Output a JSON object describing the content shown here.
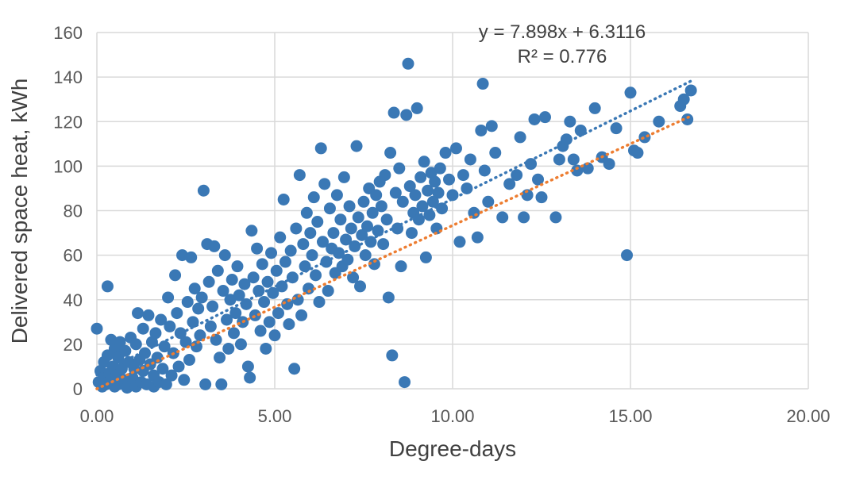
{
  "chart_data": {
    "type": "scatter",
    "title": "",
    "xlabel": "Degree-days",
    "ylabel": "Delivered space heat, kWh",
    "xlim": [
      0,
      20
    ],
    "ylim": [
      0,
      160
    ],
    "x_ticks": [
      "0.00",
      "5.00",
      "10.00",
      "15.00",
      "20.00"
    ],
    "y_ticks": [
      "0",
      "20",
      "40",
      "60",
      "80",
      "100",
      "120",
      "140",
      "160"
    ],
    "grid": true,
    "colors": {
      "points": "#3a78b5",
      "trend_linear": "#3a78b5",
      "trend_secondary": "#ed7d31",
      "grid": "#d9d9d9"
    },
    "annotations": {
      "equation": "y = 7.898x + 6.3116",
      "r_squared": "R² = 0.776"
    },
    "trendlines": [
      {
        "x": [
          0,
          16.7
        ],
        "y": [
          6.3116,
          138.2
        ],
        "color": "#3a78b5"
      },
      {
        "x": [
          0,
          16.7
        ],
        "y": [
          0,
          122.5
        ],
        "color": "#ed7d31"
      }
    ],
    "series": [
      {
        "points": [
          [
            0.0,
            27
          ],
          [
            0.05,
            3
          ],
          [
            0.1,
            8
          ],
          [
            0.15,
            1
          ],
          [
            0.2,
            5
          ],
          [
            0.2,
            12
          ],
          [
            0.25,
            2
          ],
          [
            0.3,
            46
          ],
          [
            0.3,
            15
          ],
          [
            0.35,
            7
          ],
          [
            0.4,
            22
          ],
          [
            0.4,
            3
          ],
          [
            0.45,
            10
          ],
          [
            0.5,
            18
          ],
          [
            0.5,
            1
          ],
          [
            0.55,
            6
          ],
          [
            0.6,
            14
          ],
          [
            0.6,
            2
          ],
          [
            0.65,
            21
          ],
          [
            0.7,
            9
          ],
          [
            0.75,
            4
          ],
          [
            0.8,
            17
          ],
          [
            0.85,
            0.5
          ],
          [
            0.9,
            12
          ],
          [
            0.95,
            23
          ],
          [
            1.0,
            5
          ],
          [
            1.05,
            9
          ],
          [
            1.1,
            20
          ],
          [
            1.1,
            1
          ],
          [
            1.15,
            34
          ],
          [
            1.2,
            13
          ],
          [
            1.25,
            3
          ],
          [
            1.3,
            27
          ],
          [
            1.3,
            8
          ],
          [
            1.35,
            16
          ],
          [
            1.4,
            2
          ],
          [
            1.45,
            33
          ],
          [
            1.5,
            11
          ],
          [
            1.55,
            21
          ],
          [
            1.6,
            1
          ],
          [
            1.6,
            6
          ],
          [
            1.65,
            25
          ],
          [
            1.7,
            14
          ],
          [
            1.75,
            3
          ],
          [
            1.8,
            31
          ],
          [
            1.85,
            9
          ],
          [
            1.9,
            19
          ],
          [
            1.95,
            2
          ],
          [
            2.0,
            41
          ],
          [
            2.05,
            28
          ],
          [
            2.1,
            6
          ],
          [
            2.15,
            16
          ],
          [
            2.2,
            51
          ],
          [
            2.25,
            34
          ],
          [
            2.3,
            10
          ],
          [
            2.35,
            25
          ],
          [
            2.4,
            60
          ],
          [
            2.45,
            4
          ],
          [
            2.5,
            21
          ],
          [
            2.55,
            39
          ],
          [
            2.6,
            13
          ],
          [
            2.65,
            59
          ],
          [
            2.7,
            30
          ],
          [
            2.75,
            45
          ],
          [
            2.8,
            19
          ],
          [
            2.85,
            36
          ],
          [
            2.9,
            24
          ],
          [
            2.95,
            41
          ],
          [
            3.0,
            89
          ],
          [
            3.05,
            2
          ],
          [
            3.1,
            65
          ],
          [
            3.15,
            48
          ],
          [
            3.2,
            28
          ],
          [
            3.25,
            37
          ],
          [
            3.3,
            64
          ],
          [
            3.35,
            22
          ],
          [
            3.4,
            53
          ],
          [
            3.45,
            14
          ],
          [
            3.5,
            2
          ],
          [
            3.55,
            44
          ],
          [
            3.6,
            60
          ],
          [
            3.65,
            31
          ],
          [
            3.7,
            18
          ],
          [
            3.75,
            40
          ],
          [
            3.8,
            49
          ],
          [
            3.85,
            25
          ],
          [
            3.9,
            34
          ],
          [
            3.95,
            55
          ],
          [
            4.0,
            42
          ],
          [
            4.05,
            20
          ],
          [
            4.1,
            30
          ],
          [
            4.15,
            47
          ],
          [
            4.2,
            38
          ],
          [
            4.25,
            10
          ],
          [
            4.3,
            5
          ],
          [
            4.35,
            71
          ],
          [
            4.4,
            50
          ],
          [
            4.45,
            33
          ],
          [
            4.5,
            63
          ],
          [
            4.55,
            44
          ],
          [
            4.6,
            26
          ],
          [
            4.65,
            56
          ],
          [
            4.7,
            39
          ],
          [
            4.75,
            18
          ],
          [
            4.8,
            48
          ],
          [
            4.85,
            30
          ],
          [
            4.9,
            61
          ],
          [
            4.95,
            43
          ],
          [
            5.0,
            24
          ],
          [
            5.05,
            53
          ],
          [
            5.1,
            34
          ],
          [
            5.15,
            68
          ],
          [
            5.2,
            46
          ],
          [
            5.25,
            85
          ],
          [
            5.3,
            57
          ],
          [
            5.35,
            38
          ],
          [
            5.4,
            29
          ],
          [
            5.45,
            62
          ],
          [
            5.5,
            50
          ],
          [
            5.55,
            9
          ],
          [
            5.6,
            72
          ],
          [
            5.65,
            40
          ],
          [
            5.7,
            96
          ],
          [
            5.75,
            33
          ],
          [
            5.8,
            65
          ],
          [
            5.85,
            55
          ],
          [
            5.9,
            79
          ],
          [
            5.95,
            45
          ],
          [
            6.0,
            70
          ],
          [
            6.05,
            60
          ],
          [
            6.1,
            86
          ],
          [
            6.15,
            51
          ],
          [
            6.2,
            75
          ],
          [
            6.25,
            39
          ],
          [
            6.3,
            108
          ],
          [
            6.35,
            66
          ],
          [
            6.4,
            92
          ],
          [
            6.45,
            57
          ],
          [
            6.5,
            44
          ],
          [
            6.55,
            81
          ],
          [
            6.6,
            63
          ],
          [
            6.65,
            70
          ],
          [
            6.7,
            52
          ],
          [
            6.75,
            87
          ],
          [
            6.8,
            61
          ],
          [
            6.85,
            76
          ],
          [
            6.9,
            55
          ],
          [
            6.95,
            95
          ],
          [
            7.0,
            67
          ],
          [
            7.05,
            58
          ],
          [
            7.1,
            82
          ],
          [
            7.15,
            72
          ],
          [
            7.2,
            50
          ],
          [
            7.25,
            64
          ],
          [
            7.3,
            109
          ],
          [
            7.35,
            77
          ],
          [
            7.4,
            46
          ],
          [
            7.45,
            69
          ],
          [
            7.5,
            84
          ],
          [
            7.55,
            60
          ],
          [
            7.6,
            73
          ],
          [
            7.65,
            90
          ],
          [
            7.7,
            66
          ],
          [
            7.75,
            79
          ],
          [
            7.8,
            56
          ],
          [
            7.85,
            87
          ],
          [
            7.9,
            71
          ],
          [
            7.95,
            93
          ],
          [
            8.0,
            82
          ],
          [
            8.05,
            65
          ],
          [
            8.1,
            96
          ],
          [
            8.15,
            76
          ],
          [
            8.2,
            41
          ],
          [
            8.25,
            106
          ],
          [
            8.3,
            15
          ],
          [
            8.35,
            124
          ],
          [
            8.4,
            88
          ],
          [
            8.45,
            72
          ],
          [
            8.5,
            99
          ],
          [
            8.55,
            55
          ],
          [
            8.6,
            84
          ],
          [
            8.65,
            3
          ],
          [
            8.7,
            123
          ],
          [
            8.75,
            146
          ],
          [
            8.8,
            91
          ],
          [
            8.85,
            70
          ],
          [
            8.9,
            79
          ],
          [
            8.95,
            87
          ],
          [
            9.0,
            126
          ],
          [
            9.05,
            76
          ],
          [
            9.1,
            95
          ],
          [
            9.15,
            82
          ],
          [
            9.2,
            102
          ],
          [
            9.25,
            59
          ],
          [
            9.3,
            89
          ],
          [
            9.35,
            78
          ],
          [
            9.4,
            97
          ],
          [
            9.45,
            84
          ],
          [
            9.5,
            93
          ],
          [
            9.55,
            72
          ],
          [
            9.6,
            88
          ],
          [
            9.65,
            99
          ],
          [
            9.7,
            81
          ],
          [
            9.8,
            106
          ],
          [
            9.9,
            94
          ],
          [
            10.0,
            87
          ],
          [
            10.1,
            108
          ],
          [
            10.2,
            66
          ],
          [
            10.3,
            96
          ],
          [
            10.4,
            90
          ],
          [
            10.5,
            103
          ],
          [
            10.6,
            79
          ],
          [
            10.7,
            68
          ],
          [
            10.8,
            116
          ],
          [
            10.85,
            137
          ],
          [
            10.9,
            98
          ],
          [
            11.0,
            84
          ],
          [
            11.1,
            118
          ],
          [
            11.2,
            106
          ],
          [
            11.4,
            77
          ],
          [
            11.6,
            92
          ],
          [
            11.8,
            96
          ],
          [
            11.9,
            113
          ],
          [
            12.0,
            77
          ],
          [
            12.1,
            87
          ],
          [
            12.2,
            101
          ],
          [
            12.3,
            121
          ],
          [
            12.4,
            94
          ],
          [
            12.5,
            86
          ],
          [
            12.6,
            122
          ],
          [
            12.9,
            77
          ],
          [
            13.0,
            103
          ],
          [
            13.1,
            109
          ],
          [
            13.2,
            112
          ],
          [
            13.3,
            120
          ],
          [
            13.4,
            103
          ],
          [
            13.5,
            98
          ],
          [
            13.6,
            116
          ],
          [
            13.8,
            99
          ],
          [
            14.0,
            126
          ],
          [
            14.2,
            104
          ],
          [
            14.4,
            101
          ],
          [
            14.6,
            117
          ],
          [
            14.9,
            60
          ],
          [
            15.0,
            133
          ],
          [
            15.1,
            107
          ],
          [
            15.2,
            106
          ],
          [
            15.4,
            113
          ],
          [
            15.8,
            120
          ],
          [
            16.4,
            127
          ],
          [
            16.5,
            130
          ],
          [
            16.6,
            121
          ],
          [
            16.7,
            134
          ]
        ]
      }
    ]
  }
}
